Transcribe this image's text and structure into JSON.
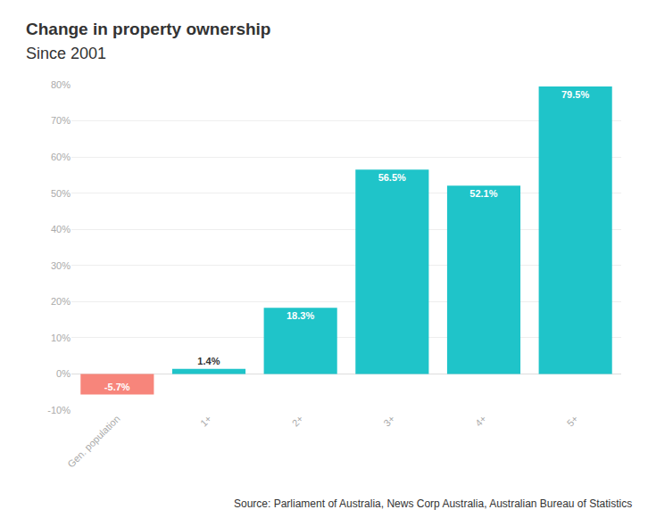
{
  "chart_data": {
    "type": "bar",
    "title": "Change in property ownership",
    "subtitle": "Since 2001",
    "categories": [
      "Gen. population",
      "1+",
      "2+",
      "3+",
      "4+",
      "5+"
    ],
    "values": [
      -5.7,
      1.4,
      18.3,
      56.5,
      52.1,
      79.5
    ],
    "value_labels": [
      "-5.7%",
      "1.4%",
      "18.3%",
      "56.5%",
      "52.1%",
      "79.5%"
    ],
    "colors": [
      "#f7857b",
      "#1fc4c9",
      "#1fc4c9",
      "#1fc4c9",
      "#1fc4c9",
      "#1fc4c9"
    ],
    "ylim": [
      -10,
      80
    ],
    "yticks": [
      {
        "value": -10,
        "label": "-10%"
      },
      {
        "value": 0,
        "label": "0%"
      },
      {
        "value": 10,
        "label": "10%"
      },
      {
        "value": 20,
        "label": "20%"
      },
      {
        "value": 30,
        "label": "30%"
      },
      {
        "value": 40,
        "label": "40%"
      },
      {
        "value": 50,
        "label": "50%"
      },
      {
        "value": 60,
        "label": "60%"
      },
      {
        "value": 70,
        "label": "70%"
      },
      {
        "value": 80,
        "label": "80%"
      }
    ],
    "grid": true,
    "data_labels": true,
    "source": "Source: Parliament of Australia, News Corp Australia, Australian Bureau of Statistics"
  }
}
